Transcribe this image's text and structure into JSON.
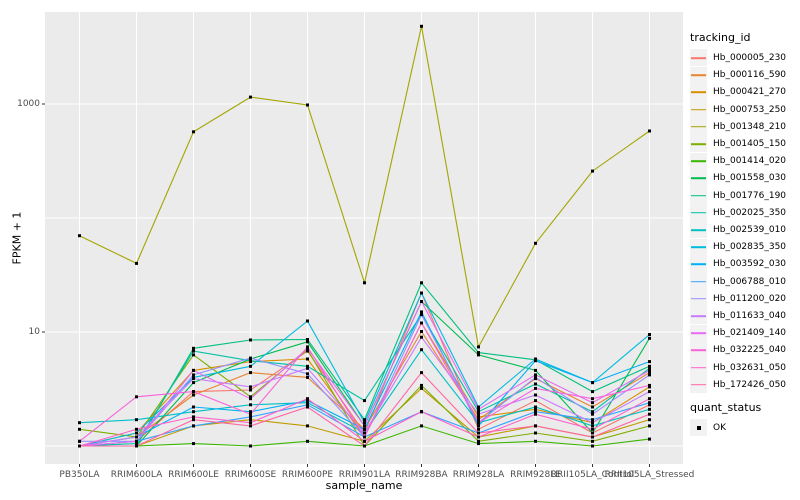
{
  "chart_data": {
    "type": "line",
    "title": "",
    "xlabel": "sample_name",
    "ylabel": "FPKM + 1",
    "yscale": "log10",
    "grid": true,
    "legend_position": "right",
    "panel_bg": "#EBEBEB",
    "grid_color": "#FFFFFF",
    "tick_color": "#333333",
    "tick_text_color": "#4D4D4D",
    "point_shape": "filled-square",
    "point_color": "#000000",
    "y_ticks": [
      {
        "label": "1000",
        "value": 1000
      },
      {
        "label": "10",
        "value": 10
      }
    ],
    "y_minor_gridlines": [
      1,
      100
    ],
    "ylim_approx": [
      0.7,
      6400
    ],
    "categories": [
      "PB350LA",
      "RRIM600LA",
      "RRIM600LE",
      "RRIM600SE",
      "RRIM600PE",
      "RRIM901LA",
      "RRIM928BA",
      "RRIM928LA",
      "RRIM928LE",
      "RRII105LA_Control",
      "RRII105LA_Stressed"
    ],
    "legend": {
      "color_title": "tracking_id",
      "shape_title": "quant_status",
      "shape_items": [
        {
          "label": "OK"
        }
      ]
    },
    "series": [
      {
        "name": "Hb_000005_230",
        "color": "#F8766D",
        "values": [
          1.0,
          1.1,
          3.0,
          3.1,
          6.8,
          1.3,
          22,
          1.4,
          2.5,
          1.3,
          2.3
        ]
      },
      {
        "name": "Hb_000116_590",
        "color": "#EA8331",
        "values": [
          1.0,
          1.2,
          2.8,
          4.4,
          4.0,
          1.4,
          10.1,
          1.7,
          3.9,
          2.2,
          4.4
        ]
      },
      {
        "name": "Hb_000421_270",
        "color": "#D89000",
        "values": [
          1.0,
          1.3,
          4.6,
          5.5,
          5.8,
          1.2,
          12,
          1.8,
          2.1,
          1.6,
          3.3
        ]
      },
      {
        "name": "Hb_000753_250",
        "color": "#C09B00",
        "values": [
          1.0,
          1.0,
          1.5,
          1.7,
          1.5,
          1.1,
          3.2,
          1.2,
          1.5,
          1.2,
          1.7
        ]
      },
      {
        "name": "Hb_001348_210",
        "color": "#A3A500",
        "values": [
          70,
          40,
          570,
          1150,
          980,
          27,
          4800,
          7.4,
          60,
          258,
          580
        ]
      },
      {
        "name": "Hb_001405_150",
        "color": "#7CAE00",
        "values": [
          1.4,
          1.2,
          6.3,
          2.7,
          7.0,
          1.0,
          3.4,
          1.1,
          1.3,
          1.1,
          1.5
        ]
      },
      {
        "name": "Hb_001414_020",
        "color": "#39B600",
        "values": [
          1.0,
          1.0,
          1.05,
          1.0,
          1.1,
          1.0,
          1.5,
          1.05,
          1.1,
          1.0,
          1.15
        ]
      },
      {
        "name": "Hb_001558_030",
        "color": "#00BB4E",
        "values": [
          1.0,
          1.0,
          3.6,
          5.8,
          8.2,
          1.5,
          18.5,
          6.3,
          4.6,
          1.3,
          8.8
        ]
      },
      {
        "name": "Hb_001776_190",
        "color": "#00BF7D",
        "values": [
          1.0,
          1.0,
          7.2,
          8.5,
          8.6,
          1.7,
          27,
          6.6,
          5.7,
          3.0,
          5.0
        ]
      },
      {
        "name": "Hb_002025_350",
        "color": "#00C1A3",
        "values": [
          1.0,
          1.05,
          6.8,
          5.6,
          5.0,
          2.5,
          14.2,
          2.0,
          3.5,
          2.0,
          4.8
        ]
      },
      {
        "name": "Hb_002539_010",
        "color": "#00BFC4",
        "values": [
          1.6,
          1.7,
          2.0,
          2.3,
          2.4,
          1.3,
          7.0,
          1.6,
          2.2,
          1.5,
          2.1
        ]
      },
      {
        "name": "Hb_002835_350",
        "color": "#00BAE0",
        "values": [
          1.0,
          1.3,
          4.0,
          5.0,
          12.5,
          1.6,
          22,
          2.2,
          5.8,
          3.6,
          9.5
        ]
      },
      {
        "name": "Hb_003592_030",
        "color": "#00B0F6",
        "values": [
          1.0,
          1.2,
          2.2,
          2.0,
          2.5,
          1.4,
          15,
          1.5,
          5.6,
          3.6,
          5.5
        ]
      },
      {
        "name": "Hb_006788_010",
        "color": "#35A2FF",
        "values": [
          1.0,
          1.1,
          1.5,
          1.8,
          2.3,
          1.2,
          2.0,
          1.3,
          2.0,
          1.7,
          2.4
        ]
      },
      {
        "name": "Hb_011200_020",
        "color": "#9590FF",
        "values": [
          1.1,
          1.1,
          4.2,
          5.9,
          4.3,
          1.2,
          14.2,
          1.6,
          4.0,
          1.9,
          4.2
        ]
      },
      {
        "name": "Hb_011633_040",
        "color": "#C77CFF",
        "values": [
          1.0,
          1.2,
          3.9,
          3.3,
          4.8,
          1.3,
          9.0,
          1.9,
          2.8,
          1.6,
          3.0
        ]
      },
      {
        "name": "Hb_021409_140",
        "color": "#E76BF3",
        "values": [
          1.0,
          1.1,
          4.6,
          2.6,
          7.2,
          1.5,
          18.5,
          2.1,
          4.2,
          2.4,
          4.6
        ]
      },
      {
        "name": "Hb_032225_040",
        "color": "#FA62DB",
        "values": [
          1.1,
          2.7,
          3.0,
          1.9,
          7.4,
          1.2,
          12,
          1.6,
          3.2,
          2.6,
          3.4
        ]
      },
      {
        "name": "Hb_032631_050",
        "color": "#FF61CC",
        "values": [
          1.0,
          1.4,
          1.8,
          1.6,
          2.6,
          1.1,
          2.0,
          1.2,
          1.9,
          1.4,
          2.6
        ]
      },
      {
        "name": "Hb_172426_050",
        "color": "#FF67A4",
        "values": [
          1.0,
          1.0,
          1.7,
          1.5,
          2.2,
          1.0,
          4.4,
          1.3,
          1.5,
          1.2,
          1.9
        ]
      }
    ]
  }
}
